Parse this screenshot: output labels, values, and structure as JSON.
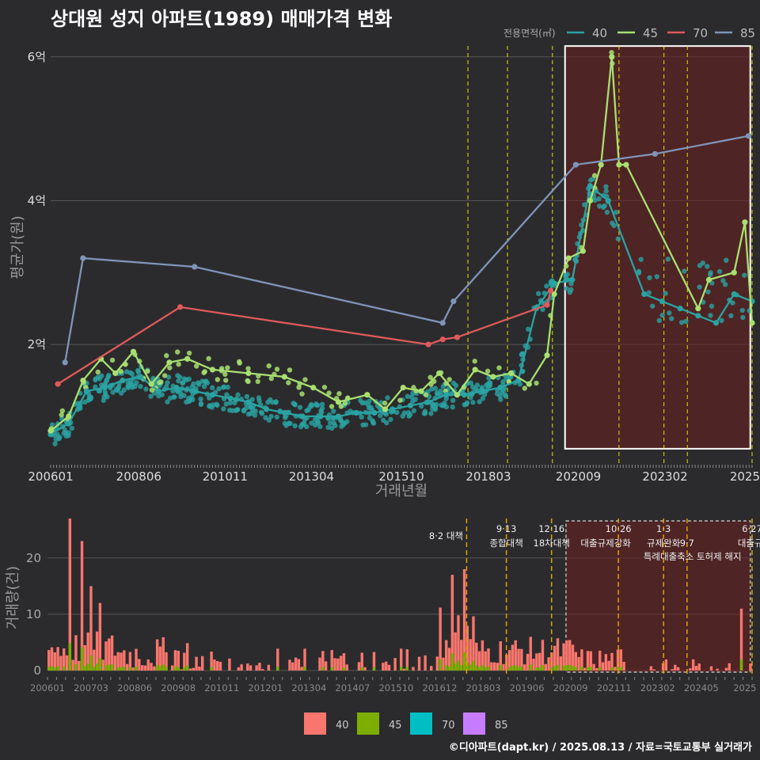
{
  "title": "상대원 성지 아파트(1989) 매매가격 변화",
  "credit": "©디아파트(dapt.kr) / 2025.08.13 / 자료=국토교통부 실거래가",
  "colors": {
    "s40": "#2aa3a3",
    "s45": "#a8e070",
    "s70": "#e05a5a",
    "s85": "#7f94b8",
    "b40": "#f8766d",
    "b45": "#7cae00",
    "b70": "#00bfc4",
    "b85": "#c77cff",
    "vline": "#e8e000",
    "vline2": "#e0a000",
    "highlight": "#6b1f1f",
    "grid": "#555555",
    "axis_text": "#dddddd"
  },
  "chart_data": [
    {
      "type": "line",
      "name": "price",
      "xlabel": "거래년월",
      "ylabel": "평균가(원)",
      "ylim": [
        0.35,
        6.35
      ],
      "y_ticks": [
        {
          "v": 2,
          "label": "2억"
        },
        {
          "v": 4,
          "label": "4억"
        },
        {
          "v": 6,
          "label": "6억"
        }
      ],
      "x_ticks": [
        "200601",
        "200806",
        "201011",
        "201304",
        "201510",
        "201803",
        "202009",
        "202302",
        "2025"
      ],
      "legend_title": "전용면적(㎡)",
      "legend": [
        "40",
        "45",
        "70",
        "85"
      ],
      "series": [
        {
          "name": "40",
          "x": [
            2006.0,
            2006.5,
            2007.0,
            2007.5,
            2008.0,
            2008.5,
            2009.0,
            2009.5,
            2010.0,
            2010.5,
            2011.0,
            2011.5,
            2012.0,
            2012.5,
            2013.0,
            2013.5,
            2014.0,
            2014.5,
            2015.0,
            2015.5,
            2016.0,
            2016.5,
            2017.0,
            2017.5,
            2018.0,
            2018.5,
            2019.0,
            2019.5,
            2020.0,
            2020.5,
            2021.0,
            2021.5,
            2022.5,
            2023.0,
            2023.5,
            2024.0,
            2024.5,
            2025.0,
            2025.5
          ],
          "y": [
            0.75,
            0.9,
            1.35,
            1.4,
            1.5,
            1.55,
            1.35,
            1.4,
            1.35,
            1.3,
            1.25,
            1.2,
            1.1,
            1.05,
            1.0,
            1.0,
            1.0,
            1.05,
            1.05,
            1.1,
            1.15,
            1.2,
            1.3,
            1.3,
            1.35,
            1.4,
            1.5,
            2.5,
            2.85,
            2.9,
            4.2,
            4.0,
            2.7,
            2.6,
            2.5,
            2.4,
            2.3,
            2.7,
            2.6
          ]
        },
        {
          "name": "45",
          "x": [
            2006.0,
            2006.5,
            2006.9,
            2007.4,
            2007.8,
            2008.3,
            2008.8,
            2009.3,
            2009.8,
            2010.5,
            2011.5,
            2012.5,
            2013.3,
            2014.0,
            2014.8,
            2015.3,
            2015.8,
            2016.3,
            2016.8,
            2017.3,
            2017.8,
            2018.3,
            2018.8,
            2019.3,
            2019.8,
            2020.0,
            2020.4,
            2020.8,
            2021.0,
            2021.3,
            2021.6,
            2021.8,
            2022.0,
            2024.0,
            2024.3,
            2025.0,
            2025.3,
            2025.5
          ],
          "y": [
            0.8,
            1.0,
            1.5,
            1.8,
            1.6,
            1.9,
            1.45,
            1.75,
            1.8,
            1.65,
            1.6,
            1.55,
            1.4,
            1.2,
            1.3,
            1.1,
            1.4,
            1.35,
            1.6,
            1.3,
            1.65,
            1.55,
            1.6,
            1.45,
            1.85,
            2.7,
            3.2,
            3.3,
            4.0,
            4.5,
            6.0,
            4.5,
            4.5,
            2.5,
            2.9,
            3.0,
            3.7,
            2.3
          ]
        },
        {
          "name": "70",
          "x": [
            2006.2,
            2009.6,
            2016.5,
            2016.9,
            2017.3,
            2019.8,
            2019.9
          ],
          "y": [
            1.45,
            2.52,
            2.0,
            2.07,
            2.1,
            2.55,
            2.75
          ]
        },
        {
          "name": "85",
          "x": [
            2006.4,
            2006.9,
            2010.0,
            2016.9,
            2017.2,
            2020.6,
            2022.8,
            2025.4
          ],
          "y": [
            1.75,
            3.2,
            3.08,
            2.3,
            2.6,
            4.5,
            4.65,
            4.9
          ]
        }
      ]
    },
    {
      "type": "bar",
      "name": "volume",
      "ylabel": "거래량(건)",
      "ylim": [
        0,
        27
      ],
      "y_ticks": [
        0,
        10,
        20
      ],
      "x_ticks": [
        "200601",
        "200703",
        "200806",
        "200908",
        "201011",
        "201201",
        "201304",
        "201407",
        "201510",
        "201612",
        "201803",
        "201906",
        "202009",
        "202111",
        "202302",
        "202405",
        "2025"
      ],
      "legend": [
        "40",
        "45",
        "70",
        "85"
      ],
      "peaks": [
        {
          "x": 2006.6,
          "v": 27
        },
        {
          "x": 2006.9,
          "v": 23
        },
        {
          "x": 2007.2,
          "v": 15
        },
        {
          "x": 2007.4,
          "v": 12
        },
        {
          "x": 2017.2,
          "v": 17
        },
        {
          "x": 2017.5,
          "v": 18
        },
        {
          "x": 2025.2,
          "v": 11
        }
      ]
    }
  ],
  "policy_annotations": [
    {
      "date": "8·2",
      "label": "8·2 대책",
      "x": 2017.6
    },
    {
      "date": "9·13",
      "label": "종합대책",
      "x": 2018.7
    },
    {
      "date": "12·16",
      "label": "18차대책",
      "x": 2019.95
    },
    {
      "date": "10·26",
      "label": "대출규제강화",
      "x": 2021.8
    },
    {
      "date": "1·3",
      "label": "규제완화",
      "x": 2023.05
    },
    {
      "date": "9·7",
      "label": "특례대출축소 토허제 해지",
      "x": 2023.7
    },
    {
      "date": "6·27",
      "label": "대출규",
      "x": 2025.5
    }
  ]
}
